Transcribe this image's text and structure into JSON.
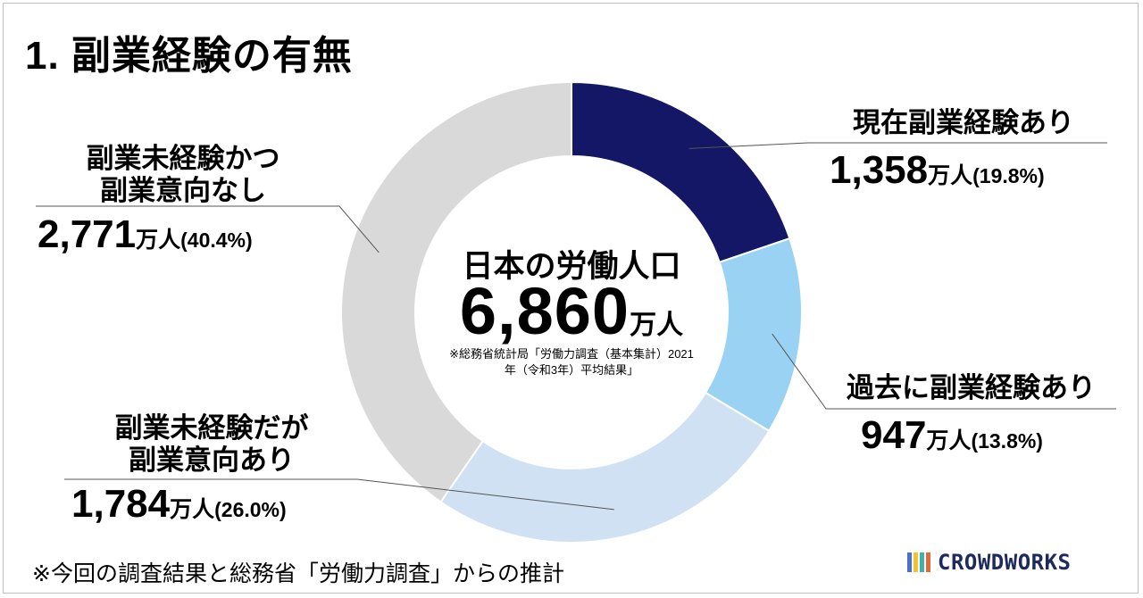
{
  "title": "1. 副業経験の有無",
  "chart_data": {
    "type": "pie",
    "variant": "donut",
    "total_label": "日本の労働人口",
    "total_value": "6,860",
    "total_unit": "万人",
    "source": [
      "※総務省統計局「労働力調査（基本集計）2021",
      "年（令和3年）平均結果」"
    ],
    "slices": [
      {
        "name_lines": [
          "現在副業経験あり"
        ],
        "value": 1358,
        "value_text": "1,358",
        "unit": "万人",
        "percent": 19.8,
        "percent_text": "(19.8%)",
        "color": "#141766"
      },
      {
        "name_lines": [
          "過去に副業経験あり"
        ],
        "value": 947,
        "value_text": "947",
        "unit": "万人",
        "percent": 13.8,
        "percent_text": "(13.8%)",
        "color": "#99d2f2"
      },
      {
        "name_lines": [
          "副業未経験だが",
          "副業意向あり"
        ],
        "value": 1784,
        "value_text": "1,784",
        "unit": "万人",
        "percent": 26.0,
        "percent_text": "(26.0%)",
        "color": "#cfe1f3"
      },
      {
        "name_lines": [
          "副業未経験かつ",
          "副業意向なし"
        ],
        "value": 2771,
        "value_text": "2,771",
        "unit": "万人",
        "percent": 40.4,
        "percent_text": "(40.4%)",
        "color": "#d9d9d9"
      }
    ]
  },
  "footnote": "※今回の調査結果と総務省「労働力調査」からの推計",
  "logo": {
    "text": "CROWDWORKS",
    "colors": [
      "#4a6fd1",
      "#f2c230",
      "#3fb3a8",
      "#e06a3a"
    ]
  }
}
